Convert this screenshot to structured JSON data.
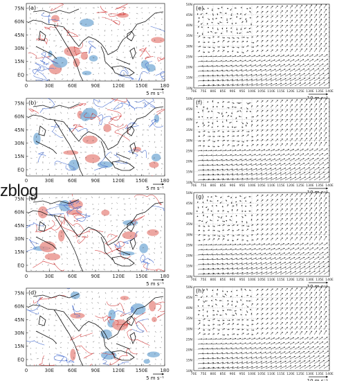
{
  "watermark": "zblog",
  "colors": {
    "positive_contour": "#d64545",
    "negative_contour": "#4a6fd0",
    "positive_shading": "#e8908a",
    "negative_shading": "#7fb0d8",
    "coast": "#111111",
    "vector": "#111111"
  },
  "left_panels": {
    "lat_ticks": [
      "75N",
      "60N",
      "45N",
      "30N",
      "15N",
      "EQ"
    ],
    "lon_ticks": [
      "0",
      "30E",
      "60E",
      "90E",
      "120E",
      "150E",
      "180"
    ],
    "labels": [
      "(a)",
      "(b)",
      "(c)",
      "(d)"
    ],
    "scale_label": "5 m s⁻¹"
  },
  "right_panels": {
    "lat_ticks": [
      "50N",
      "45N",
      "40N",
      "35N",
      "30N",
      "25N",
      "20N",
      "15N",
      "10N"
    ],
    "lon_ticks": [
      "70E",
      "75E",
      "80E",
      "85E",
      "90E",
      "95E",
      "100E",
      "105E",
      "110E",
      "115E",
      "120E",
      "125E",
      "130E",
      "135E",
      "140E"
    ],
    "labels": [
      "(e)",
      "(f)",
      "(g)",
      "(h)"
    ],
    "scale_label": "10 m s⁻¹"
  }
}
